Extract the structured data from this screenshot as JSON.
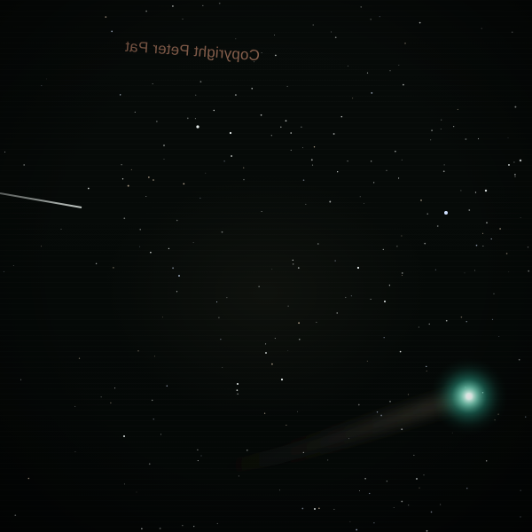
{
  "photo": {
    "subject": "comet",
    "watermark": "Copyright Peter Pat",
    "colors": {
      "sky": "#060a08",
      "coma": "#2fb59a",
      "nucleus": "#f4fff8",
      "watermark": "#a0705a",
      "tail": "#3a3428"
    }
  }
}
